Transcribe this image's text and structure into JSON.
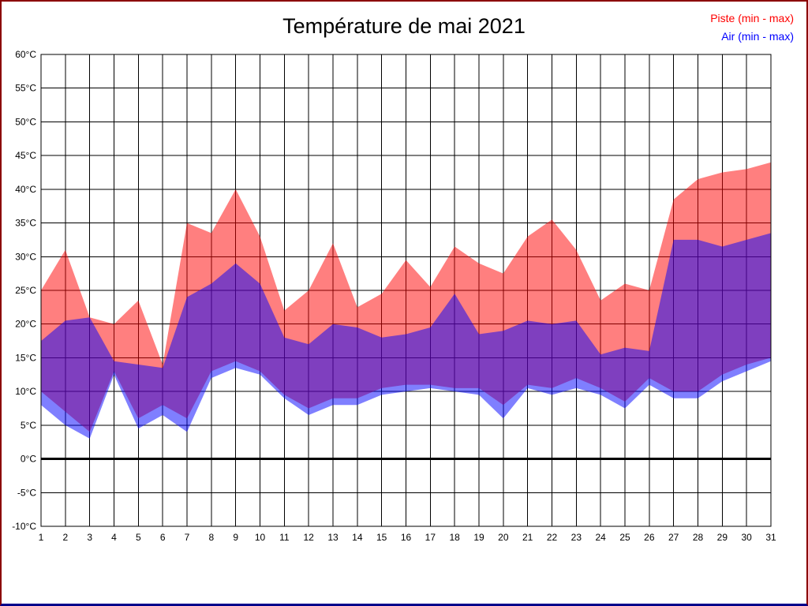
{
  "page": {
    "border_top_color": "#8b0000",
    "border_bottom_color": "#00008b",
    "background": "#ffffff"
  },
  "chart_data": {
    "type": "area",
    "title": "Température de mai 2021",
    "x": [
      1,
      2,
      3,
      4,
      5,
      6,
      7,
      8,
      9,
      10,
      11,
      12,
      13,
      14,
      15,
      16,
      17,
      18,
      19,
      20,
      21,
      22,
      23,
      24,
      25,
      26,
      27,
      28,
      29,
      30,
      31
    ],
    "xlabel": "",
    "ylabel": "",
    "ylim": [
      -10,
      60
    ],
    "ytick_step": 5,
    "ytick_suffix": "°C",
    "grid": true,
    "legend_position": "top-right",
    "zero_line": 0,
    "series": [
      {
        "name": "Piste (min - max)",
        "color": "#ff0000",
        "opacity": 0.5,
        "max": [
          25,
          31,
          21,
          20,
          23.5,
          14,
          35,
          33.5,
          40,
          33,
          22,
          25,
          32,
          22.5,
          24.5,
          29.5,
          25.5,
          31.5,
          29,
          27.5,
          33,
          35.5,
          31,
          23.5,
          26,
          25,
          38.5,
          41.5,
          42.5,
          43,
          44
        ],
        "min": [
          10,
          7,
          4,
          13,
          6,
          8,
          6,
          13,
          14.5,
          13,
          9.5,
          7.5,
          9,
          9,
          10.5,
          11,
          11,
          10.5,
          10.5,
          8,
          11,
          10.5,
          12,
          10.5,
          8.5,
          12,
          10,
          10,
          12.5,
          14,
          15
        ]
      },
      {
        "name": "Air (min - max)",
        "color": "#0000ff",
        "opacity": 0.5,
        "max": [
          17.5,
          20.5,
          21,
          14.5,
          14,
          13.5,
          24,
          26,
          29,
          26,
          18,
          17,
          20,
          19.5,
          18,
          18.5,
          19.5,
          24.5,
          18.5,
          19,
          20.5,
          20,
          20.5,
          15.5,
          16.5,
          16,
          32.5,
          32.5,
          31.5,
          32.5,
          33.5
        ],
        "min": [
          8,
          5,
          3,
          12.5,
          4.5,
          6.5,
          4,
          12,
          13.5,
          12.5,
          9,
          6.5,
          8,
          8,
          9.5,
          10,
          10.5,
          10,
          9.5,
          6,
          10.5,
          9.5,
          10.5,
          9.5,
          7.5,
          11,
          9,
          9,
          11.5,
          13,
          14.5
        ]
      }
    ]
  }
}
